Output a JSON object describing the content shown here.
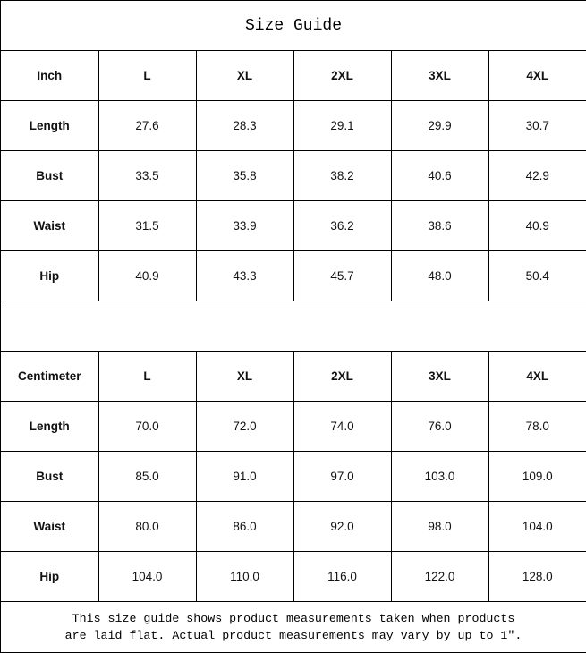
{
  "title": "Size Guide",
  "inch_table": {
    "header": [
      "Inch",
      "L",
      "XL",
      "2XL",
      "3XL",
      "4XL"
    ],
    "rows": [
      [
        "Length",
        "27.6",
        "28.3",
        "29.1",
        "29.9",
        "30.7"
      ],
      [
        "Bust",
        "33.5",
        "35.8",
        "38.2",
        "40.6",
        "42.9"
      ],
      [
        "Waist",
        "31.5",
        "33.9",
        "36.2",
        "38.6",
        "40.9"
      ],
      [
        "Hip",
        "40.9",
        "43.3",
        "45.7",
        "48.0",
        "50.4"
      ]
    ]
  },
  "cm_table": {
    "header": [
      "Centimeter",
      "L",
      "XL",
      "2XL",
      "3XL",
      "4XL"
    ],
    "rows": [
      [
        "Length",
        "70.0",
        "72.0",
        "74.0",
        "76.0",
        "78.0"
      ],
      [
        "Bust",
        "85.0",
        "91.0",
        "97.0",
        "103.0",
        "109.0"
      ],
      [
        "Waist",
        "80.0",
        "86.0",
        "92.0",
        "98.0",
        "104.0"
      ],
      [
        "Hip",
        "104.0",
        "110.0",
        "116.0",
        "122.0",
        "128.0"
      ]
    ]
  },
  "footer": {
    "line1": "This size guide shows product measurements taken when products",
    "line2": "are laid flat. Actual product measurements may vary by up to 1″."
  }
}
